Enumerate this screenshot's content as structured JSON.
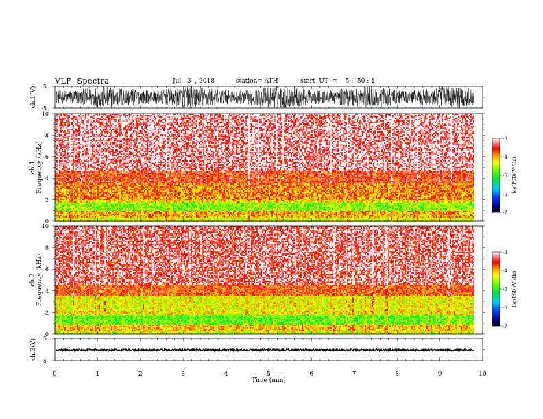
{
  "header": {
    "title": "VLF  Spectra",
    "date": "Jul.  3  , 2018",
    "station": "station= ATH",
    "start": "start  UT  =    5  : 50 : 1"
  },
  "chart_data": [
    {
      "type": "line",
      "name": "ch1-waveform",
      "ylabel": "ch.1(V)",
      "ylim": [
        -5,
        5
      ],
      "yticks": [
        "5",
        "-5"
      ],
      "xlim": [
        0,
        10
      ],
      "description_values": {
        "amplitude_min": -5,
        "amplitude_max": 5,
        "duration_min": 9.8
      }
    },
    {
      "type": "heatmap",
      "name": "ch1-spectrogram",
      "ylabel": "ch.1\nFrequency (kHz)",
      "ylabel_line1": "ch.1",
      "ylabel_line2": "Frequency  (kHz)",
      "ylim": [
        0,
        10
      ],
      "yticks": [
        0,
        2,
        4,
        6,
        8,
        10
      ],
      "xlim": [
        0,
        10
      ],
      "data_end_min": 9.8,
      "bands": [
        {
          "f0": 0.0,
          "f1": 0.3,
          "level": -4.4
        },
        {
          "f0": 0.3,
          "f1": 1.0,
          "level": -4.0
        },
        {
          "f0": 1.0,
          "f1": 1.7,
          "level": -4.7
        },
        {
          "f0": 1.7,
          "f1": 2.0,
          "level": -4.2
        },
        {
          "f0": 2.0,
          "f1": 3.5,
          "level": -3.9
        },
        {
          "f0": 3.5,
          "f1": 4.6,
          "level": -3.6
        },
        {
          "f0": 4.6,
          "f1": 10.0,
          "level": -3.2
        }
      ],
      "colorbar": {
        "label": "log(PSD)(V²/Hz)",
        "min": -7,
        "max": -3,
        "ticks": [
          "-3",
          "-4",
          "-5",
          "-6",
          "-7"
        ]
      }
    },
    {
      "type": "heatmap",
      "name": "ch2-spectrogram",
      "ylabel_line1": "ch.2",
      "ylabel_line2": "Frequency  (kHz)",
      "ylim": [
        0,
        10
      ],
      "yticks": [
        0,
        2,
        4,
        6,
        8,
        10
      ],
      "xlim": [
        0,
        10
      ],
      "data_end_min": 9.8,
      "bands": [
        {
          "f0": 0.0,
          "f1": 0.3,
          "level": -4.4
        },
        {
          "f0": 0.3,
          "f1": 0.9,
          "level": -4.1
        },
        {
          "f0": 0.9,
          "f1": 1.8,
          "level": -4.8
        },
        {
          "f0": 1.8,
          "f1": 2.1,
          "level": -4.2
        },
        {
          "f0": 2.1,
          "f1": 3.6,
          "level": -4.3
        },
        {
          "f0": 3.6,
          "f1": 4.5,
          "level": -3.7
        },
        {
          "f0": 4.5,
          "f1": 10.0,
          "level": -3.3
        }
      ],
      "colorbar": {
        "label": "log(PSD)(V²/Hz)",
        "min": -7,
        "max": -3,
        "ticks": [
          "-3",
          "-4",
          "-5",
          "-6",
          "-7"
        ]
      }
    },
    {
      "type": "line",
      "name": "ch3-waveform",
      "ylabel": "ch.3(V)",
      "ylim": [
        -5,
        5
      ],
      "yticks": [
        "5",
        "-5"
      ],
      "xlim": [
        0,
        10
      ],
      "description_values": {
        "level_min": -0.6,
        "level_max": 0.2,
        "duration_min": 9.8
      }
    }
  ],
  "xaxis": {
    "label": "Time  (min)",
    "ticks": [
      "0",
      "1",
      "2",
      "3",
      "4",
      "5",
      "6",
      "7",
      "8",
      "9",
      "10"
    ]
  }
}
